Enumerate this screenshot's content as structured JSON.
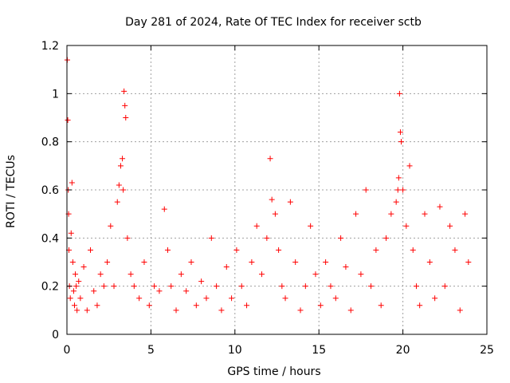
{
  "chart_data": {
    "type": "scatter",
    "title": "Day 281 of 2024, Rate Of TEC Index for receiver sctb",
    "xlabel": "GPS time / hours",
    "ylabel": "ROTI / TECUs",
    "xlim": [
      0,
      25
    ],
    "ylim": [
      0,
      1.2
    ],
    "xticks": [
      0,
      5,
      10,
      15,
      20,
      25
    ],
    "xtick_labels": [
      "0",
      "5",
      "10",
      "15",
      "20",
      "25"
    ],
    "yticks": [
      0,
      0.2,
      0.4,
      0.6,
      0.8,
      1,
      1.2
    ],
    "ytick_labels": [
      "0",
      "0.2",
      "0.4",
      "0.6",
      "0.8",
      "1",
      "1.2"
    ],
    "grid": true,
    "marker": "+",
    "series": [
      {
        "name": "ROTI",
        "color": "#ff0000",
        "x": [
          0.02,
          0.05,
          0.08,
          0.1,
          0.12,
          0.15,
          0.2,
          0.25,
          0.3,
          0.35,
          0.4,
          0.45,
          0.5,
          0.55,
          0.6,
          0.7,
          0.8,
          1.0,
          1.2,
          1.4,
          1.6,
          1.8,
          2.0,
          2.2,
          2.4,
          2.6,
          2.8,
          3.0,
          3.1,
          3.2,
          3.3,
          3.35,
          3.4,
          3.45,
          3.5,
          3.6,
          3.8,
          4.0,
          4.3,
          4.6,
          4.9,
          5.2,
          5.5,
          5.8,
          6.0,
          6.2,
          6.5,
          6.8,
          7.1,
          7.4,
          7.7,
          8.0,
          8.3,
          8.6,
          8.9,
          9.2,
          9.5,
          9.8,
          10.1,
          10.4,
          10.7,
          11.0,
          11.3,
          11.6,
          11.9,
          12.1,
          12.2,
          12.4,
          12.6,
          12.8,
          13.0,
          13.3,
          13.6,
          13.9,
          14.2,
          14.5,
          14.8,
          15.1,
          15.4,
          15.7,
          16.0,
          16.3,
          16.6,
          16.9,
          17.2,
          17.5,
          17.8,
          18.1,
          18.4,
          18.7,
          19.0,
          19.3,
          19.6,
          19.7,
          19.75,
          19.8,
          19.85,
          19.9,
          20.0,
          20.2,
          20.4,
          20.6,
          20.8,
          21.0,
          21.3,
          21.6,
          21.9,
          22.2,
          22.5,
          22.8,
          23.1,
          23.4,
          23.7,
          23.9
        ],
        "y": [
          1.14,
          0.89,
          0.6,
          0.5,
          0.35,
          0.2,
          0.15,
          0.42,
          0.63,
          0.3,
          0.18,
          0.12,
          0.25,
          0.2,
          0.1,
          0.22,
          0.15,
          0.28,
          0.1,
          0.35,
          0.18,
          0.12,
          0.25,
          0.2,
          0.3,
          0.45,
          0.2,
          0.55,
          0.62,
          0.7,
          0.73,
          0.6,
          1.01,
          0.95,
          0.9,
          0.4,
          0.25,
          0.2,
          0.15,
          0.3,
          0.12,
          0.2,
          0.18,
          0.52,
          0.35,
          0.2,
          0.1,
          0.25,
          0.18,
          0.3,
          0.12,
          0.22,
          0.15,
          0.4,
          0.2,
          0.1,
          0.28,
          0.15,
          0.35,
          0.2,
          0.12,
          0.3,
          0.45,
          0.25,
          0.4,
          0.73,
          0.56,
          0.5,
          0.35,
          0.2,
          0.15,
          0.55,
          0.3,
          0.1,
          0.2,
          0.45,
          0.25,
          0.12,
          0.3,
          0.2,
          0.15,
          0.4,
          0.28,
          0.1,
          0.5,
          0.25,
          0.6,
          0.2,
          0.35,
          0.12,
          0.4,
          0.5,
          0.55,
          0.6,
          0.65,
          1.0,
          0.84,
          0.8,
          0.6,
          0.45,
          0.7,
          0.35,
          0.2,
          0.12,
          0.5,
          0.3,
          0.15,
          0.53,
          0.2,
          0.45,
          0.35,
          0.1,
          0.5,
          0.3
        ]
      }
    ]
  }
}
